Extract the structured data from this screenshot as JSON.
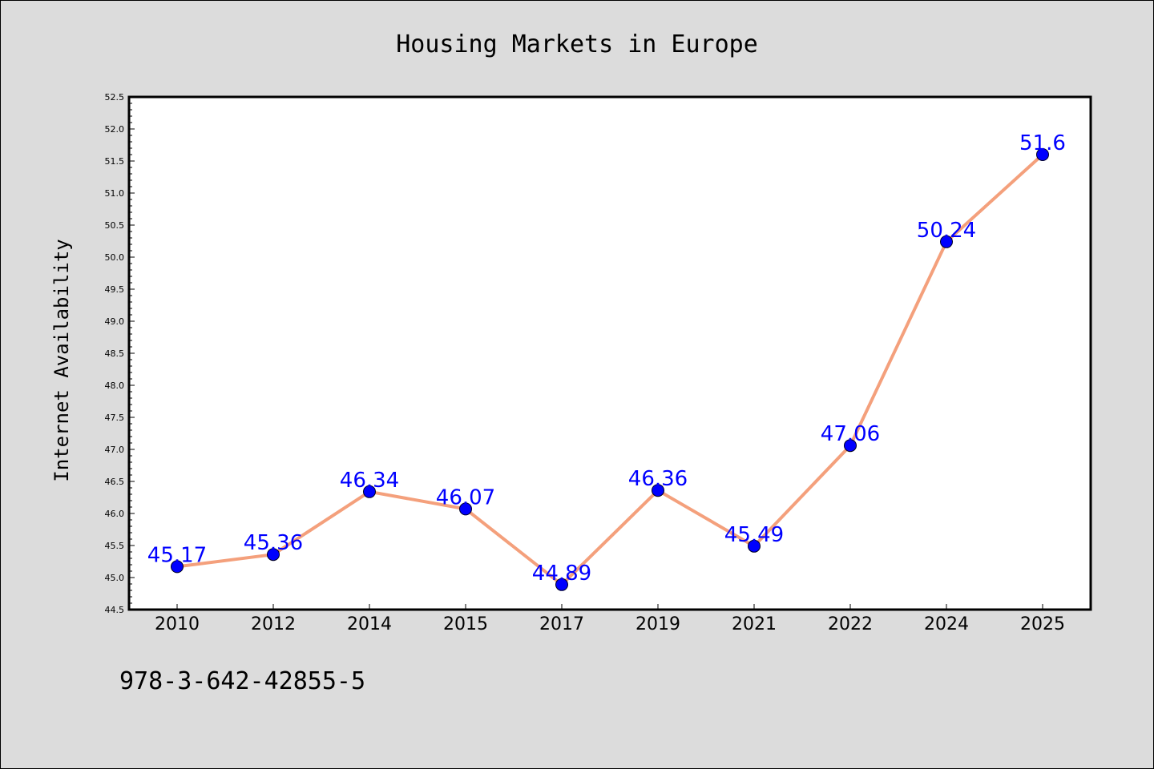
{
  "chart_data": {
    "type": "line",
    "title": "Housing Markets in Europe",
    "xlabel": "",
    "ylabel": "Internet Availability",
    "categories": [
      "2010",
      "2012",
      "2014",
      "2015",
      "2017",
      "2019",
      "2021",
      "2022",
      "2024",
      "2025"
    ],
    "series": [
      {
        "values": [
          45.17,
          45.36,
          46.34,
          46.07,
          44.89,
          46.36,
          45.49,
          47.06,
          50.24,
          51.6
        ],
        "labels": [
          "45.17",
          "45.36",
          "46.34",
          "46.07",
          "44.89",
          "46.36",
          "45.49",
          "47.06",
          "50.24",
          "51.6"
        ],
        "line_color": "#f4a07c",
        "marker_color": "#0000ff"
      }
    ],
    "ylim": [
      44.5,
      52.5
    ],
    "yticks": [
      "44.5",
      "45.0",
      "45.5",
      "46.0",
      "46.5",
      "47.0",
      "47.5",
      "48.0",
      "48.5",
      "49.0",
      "49.5",
      "50.0",
      "50.5",
      "51.0",
      "51.5",
      "52.0",
      "52.5"
    ],
    "grid": false,
    "legend": "none",
    "colors": {
      "background": "#dcdcdc",
      "plot_background": "#ffffff",
      "label_color": "#0000ff"
    }
  },
  "footer_text": "978-3-642-42855-5"
}
